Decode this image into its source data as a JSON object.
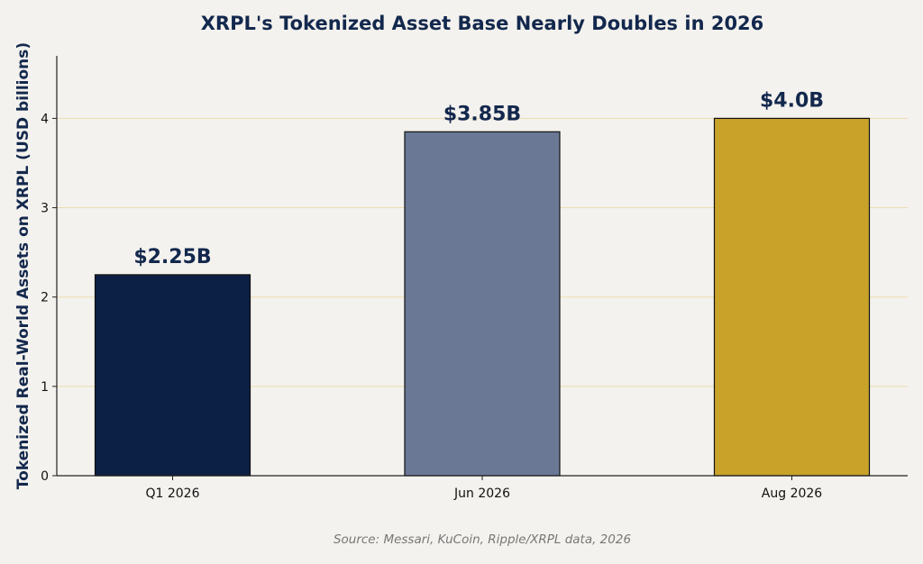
{
  "chart_data": {
    "type": "bar",
    "title": "XRPL's Tokenized Asset Base Nearly Doubles in 2026",
    "xlabel": "",
    "ylabel": "Tokenized Real-World Assets on XRPL (USD billions)",
    "categories": [
      "Q1 2026",
      "Jun 2026",
      "Aug 2026"
    ],
    "values": [
      2.25,
      3.85,
      4.0
    ],
    "data_labels": [
      "$2.25B",
      "$3.85B",
      "$4.0B"
    ],
    "colors": [
      "#0c1f44",
      "#6a7896",
      "#c9a22a"
    ],
    "ylim": [
      0,
      4.7
    ],
    "yticks": [
      0,
      1,
      2,
      3,
      4
    ],
    "grid": true,
    "grid_color": "#ecdcae",
    "source": "Source: Messari, KuCoin, Ripple/XRPL data, 2026"
  }
}
